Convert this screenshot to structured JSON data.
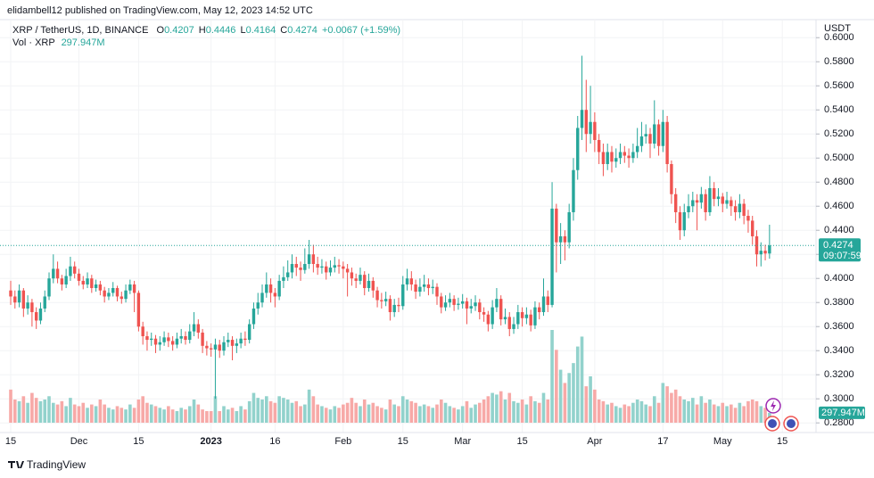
{
  "header": {
    "publisher": "elidambell12 published on TradingView.com, May 12, 2023 14:52 UTC"
  },
  "footer": {
    "brand": "TradingView"
  },
  "chart_data": {
    "type": "candlestick",
    "symbol": "XRP / TetherUS, 1D, BINANCE",
    "ohlc_legend_labels": [
      "O",
      "H",
      "L",
      "C"
    ],
    "change_label": "+0.0067 (+1.59%)",
    "volume_title": "Vol · XRP",
    "volume_label": "297.947M",
    "countdown": "09:07:59",
    "currency": "USDT",
    "up_color": "#26a69a",
    "down_color": "#ef5350",
    "up_volume_color": "#92d2cc",
    "down_volume_color": "#f7a9a7",
    "grid": true,
    "ylim": [
      0.272,
      0.615
    ],
    "yticks": [
      {
        "value": 0.28,
        "label": "0.2800"
      },
      {
        "value": 0.3,
        "label": "0.3000"
      },
      {
        "value": 0.32,
        "label": "0.3200"
      },
      {
        "value": 0.34,
        "label": "0.3400"
      },
      {
        "value": 0.36,
        "label": "0.3600"
      },
      {
        "value": 0.38,
        "label": "0.3800"
      },
      {
        "value": 0.4,
        "label": "0.4000"
      },
      {
        "value": 0.42,
        "label": "0.4200"
      },
      {
        "value": 0.44,
        "label": "0.4400"
      },
      {
        "value": 0.46,
        "label": "0.4600"
      },
      {
        "value": 0.48,
        "label": "0.4800"
      },
      {
        "value": 0.5,
        "label": "0.5000"
      },
      {
        "value": 0.52,
        "label": "0.5200"
      },
      {
        "value": 0.54,
        "label": "0.5400"
      },
      {
        "value": 0.56,
        "label": "0.5600"
      },
      {
        "value": 0.58,
        "label": "0.5800"
      },
      {
        "value": 0.6,
        "label": "0.6000"
      }
    ],
    "categories": [
      "15",
      null,
      null,
      null,
      null,
      null,
      null,
      null,
      null,
      null,
      null,
      null,
      null,
      null,
      null,
      null,
      "Dec",
      null,
      null,
      null,
      null,
      null,
      null,
      null,
      null,
      null,
      null,
      null,
      null,
      null,
      "15",
      null,
      null,
      null,
      null,
      null,
      null,
      null,
      null,
      null,
      null,
      null,
      null,
      null,
      null,
      null,
      null,
      "2023",
      null,
      null,
      null,
      null,
      null,
      null,
      null,
      null,
      null,
      null,
      null,
      null,
      null,
      null,
      "16",
      null,
      null,
      null,
      null,
      null,
      null,
      null,
      null,
      null,
      null,
      null,
      null,
      null,
      null,
      null,
      "Feb",
      null,
      null,
      null,
      null,
      null,
      null,
      null,
      null,
      null,
      null,
      null,
      null,
      null,
      "15",
      null,
      null,
      null,
      null,
      null,
      null,
      null,
      null,
      null,
      null,
      null,
      null,
      null,
      "Mar",
      null,
      null,
      null,
      null,
      null,
      null,
      null,
      null,
      null,
      null,
      null,
      null,
      null,
      "15",
      null,
      null,
      null,
      null,
      null,
      null,
      null,
      null,
      null,
      null,
      null,
      null,
      null,
      null,
      null,
      null,
      "Apr",
      null,
      null,
      null,
      null,
      null,
      null,
      null,
      null,
      null,
      null,
      null,
      null,
      null,
      null,
      null,
      "17",
      null,
      null,
      null,
      null,
      null,
      null,
      null,
      null,
      null,
      null,
      null,
      null,
      null,
      "May",
      null,
      null,
      null,
      null,
      null,
      null,
      null,
      null,
      null,
      null,
      null,
      null,
      null,
      "15"
    ],
    "ohlc": [
      [
        0.39,
        0.398,
        0.378,
        0.385
      ],
      [
        0.385,
        0.39,
        0.375,
        0.38
      ],
      [
        0.38,
        0.395,
        0.376,
        0.39
      ],
      [
        0.39,
        0.392,
        0.368,
        0.375
      ],
      [
        0.375,
        0.386,
        0.37,
        0.38
      ],
      [
        0.38,
        0.383,
        0.36,
        0.372
      ],
      [
        0.372,
        0.376,
        0.358,
        0.365
      ],
      [
        0.365,
        0.38,
        0.362,
        0.375
      ],
      [
        0.375,
        0.39,
        0.372,
        0.385
      ],
      [
        0.385,
        0.405,
        0.382,
        0.4
      ],
      [
        0.4,
        0.42,
        0.396,
        0.408
      ],
      [
        0.408,
        0.414,
        0.396,
        0.4
      ],
      [
        0.4,
        0.403,
        0.39,
        0.395
      ],
      [
        0.395,
        0.408,
        0.392,
        0.402
      ],
      [
        0.402,
        0.418,
        0.398,
        0.41
      ],
      [
        0.41,
        0.414,
        0.4,
        0.404
      ],
      [
        0.404,
        0.408,
        0.394,
        0.398
      ],
      [
        0.398,
        0.402,
        0.391,
        0.395
      ],
      [
        0.395,
        0.405,
        0.392,
        0.4
      ],
      [
        0.4,
        0.403,
        0.388,
        0.392
      ],
      [
        0.392,
        0.399,
        0.389,
        0.395
      ],
      [
        0.395,
        0.398,
        0.386,
        0.39
      ],
      [
        0.39,
        0.393,
        0.38,
        0.385
      ],
      [
        0.385,
        0.392,
        0.382,
        0.388
      ],
      [
        0.388,
        0.397,
        0.385,
        0.392
      ],
      [
        0.392,
        0.394,
        0.381,
        0.385
      ],
      [
        0.385,
        0.389,
        0.379,
        0.383
      ],
      [
        0.383,
        0.395,
        0.38,
        0.39
      ],
      [
        0.39,
        0.399,
        0.387,
        0.395
      ],
      [
        0.395,
        0.398,
        0.372,
        0.388
      ],
      [
        0.388,
        0.39,
        0.356,
        0.36
      ],
      [
        0.36,
        0.364,
        0.345,
        0.352
      ],
      [
        0.352,
        0.356,
        0.34,
        0.349
      ],
      [
        0.349,
        0.355,
        0.344,
        0.35
      ],
      [
        0.35,
        0.353,
        0.338,
        0.345
      ],
      [
        0.345,
        0.352,
        0.34,
        0.347
      ],
      [
        0.347,
        0.356,
        0.344,
        0.351
      ],
      [
        0.351,
        0.355,
        0.343,
        0.348
      ],
      [
        0.348,
        0.352,
        0.34,
        0.345
      ],
      [
        0.345,
        0.355,
        0.342,
        0.35
      ],
      [
        0.35,
        0.358,
        0.346,
        0.352
      ],
      [
        0.352,
        0.356,
        0.345,
        0.349
      ],
      [
        0.349,
        0.362,
        0.346,
        0.356
      ],
      [
        0.356,
        0.372,
        0.352,
        0.362
      ],
      [
        0.362,
        0.366,
        0.35,
        0.355
      ],
      [
        0.355,
        0.358,
        0.338,
        0.344
      ],
      [
        0.344,
        0.348,
        0.336,
        0.342
      ],
      [
        0.342,
        0.346,
        0.335,
        0.341
      ],
      [
        0.341,
        0.35,
        0.3,
        0.345
      ],
      [
        0.345,
        0.349,
        0.334,
        0.34
      ],
      [
        0.34,
        0.352,
        0.336,
        0.347
      ],
      [
        0.347,
        0.355,
        0.343,
        0.349
      ],
      [
        0.349,
        0.352,
        0.332,
        0.344
      ],
      [
        0.344,
        0.35,
        0.338,
        0.346
      ],
      [
        0.346,
        0.355,
        0.342,
        0.35
      ],
      [
        0.35,
        0.356,
        0.344,
        0.349
      ],
      [
        0.349,
        0.366,
        0.346,
        0.362
      ],
      [
        0.362,
        0.38,
        0.358,
        0.375
      ],
      [
        0.375,
        0.388,
        0.37,
        0.38
      ],
      [
        0.38,
        0.395,
        0.376,
        0.388
      ],
      [
        0.388,
        0.405,
        0.384,
        0.395
      ],
      [
        0.395,
        0.4,
        0.38,
        0.388
      ],
      [
        0.388,
        0.392,
        0.376,
        0.385
      ],
      [
        0.385,
        0.403,
        0.382,
        0.398
      ],
      [
        0.398,
        0.41,
        0.392,
        0.401
      ],
      [
        0.401,
        0.415,
        0.398,
        0.405
      ],
      [
        0.405,
        0.42,
        0.4,
        0.412
      ],
      [
        0.412,
        0.418,
        0.402,
        0.409
      ],
      [
        0.409,
        0.414,
        0.398,
        0.407
      ],
      [
        0.407,
        0.425,
        0.404,
        0.412
      ],
      [
        0.412,
        0.432,
        0.408,
        0.42
      ],
      [
        0.42,
        0.428,
        0.405,
        0.412
      ],
      [
        0.412,
        0.418,
        0.403,
        0.409
      ],
      [
        0.409,
        0.416,
        0.404,
        0.41
      ],
      [
        0.41,
        0.414,
        0.399,
        0.405
      ],
      [
        0.405,
        0.415,
        0.402,
        0.409
      ],
      [
        0.409,
        0.418,
        0.405,
        0.411
      ],
      [
        0.411,
        0.416,
        0.404,
        0.41
      ],
      [
        0.41,
        0.414,
        0.4,
        0.408
      ],
      [
        0.408,
        0.412,
        0.385,
        0.405
      ],
      [
        0.405,
        0.409,
        0.394,
        0.4
      ],
      [
        0.4,
        0.404,
        0.392,
        0.398
      ],
      [
        0.398,
        0.409,
        0.395,
        0.403
      ],
      [
        0.403,
        0.406,
        0.386,
        0.392
      ],
      [
        0.392,
        0.404,
        0.389,
        0.398
      ],
      [
        0.398,
        0.401,
        0.384,
        0.39
      ],
      [
        0.39,
        0.393,
        0.376,
        0.382
      ],
      [
        0.382,
        0.388,
        0.375,
        0.381
      ],
      [
        0.381,
        0.389,
        0.377,
        0.383
      ],
      [
        0.383,
        0.386,
        0.365,
        0.372
      ],
      [
        0.372,
        0.383,
        0.368,
        0.378
      ],
      [
        0.378,
        0.384,
        0.372,
        0.377
      ],
      [
        0.377,
        0.402,
        0.374,
        0.395
      ],
      [
        0.395,
        0.408,
        0.39,
        0.4
      ],
      [
        0.4,
        0.406,
        0.39,
        0.395
      ],
      [
        0.395,
        0.399,
        0.383,
        0.389
      ],
      [
        0.389,
        0.4,
        0.385,
        0.393
      ],
      [
        0.393,
        0.403,
        0.389,
        0.395
      ],
      [
        0.395,
        0.4,
        0.386,
        0.392
      ],
      [
        0.392,
        0.399,
        0.387,
        0.393
      ],
      [
        0.393,
        0.396,
        0.378,
        0.385
      ],
      [
        0.385,
        0.388,
        0.371,
        0.376
      ],
      [
        0.376,
        0.386,
        0.373,
        0.38
      ],
      [
        0.38,
        0.388,
        0.376,
        0.383
      ],
      [
        0.383,
        0.386,
        0.373,
        0.378
      ],
      [
        0.378,
        0.384,
        0.374,
        0.379
      ],
      [
        0.379,
        0.387,
        0.375,
        0.381
      ],
      [
        0.381,
        0.384,
        0.362,
        0.375
      ],
      [
        0.375,
        0.383,
        0.371,
        0.377
      ],
      [
        0.377,
        0.386,
        0.373,
        0.38
      ],
      [
        0.38,
        0.383,
        0.366,
        0.372
      ],
      [
        0.372,
        0.376,
        0.364,
        0.37
      ],
      [
        0.37,
        0.373,
        0.356,
        0.362
      ],
      [
        0.362,
        0.382,
        0.358,
        0.376
      ],
      [
        0.376,
        0.392,
        0.372,
        0.383
      ],
      [
        0.383,
        0.386,
        0.361,
        0.366
      ],
      [
        0.366,
        0.375,
        0.362,
        0.368
      ],
      [
        0.368,
        0.372,
        0.352,
        0.358
      ],
      [
        0.358,
        0.368,
        0.354,
        0.362
      ],
      [
        0.362,
        0.378,
        0.358,
        0.372
      ],
      [
        0.372,
        0.376,
        0.36,
        0.367
      ],
      [
        0.367,
        0.376,
        0.362,
        0.37
      ],
      [
        0.37,
        0.374,
        0.356,
        0.361
      ],
      [
        0.361,
        0.381,
        0.358,
        0.376
      ],
      [
        0.376,
        0.38,
        0.366,
        0.372
      ],
      [
        0.372,
        0.4,
        0.369,
        0.385
      ],
      [
        0.385,
        0.39,
        0.372,
        0.378
      ],
      [
        0.378,
        0.48,
        0.376,
        0.458
      ],
      [
        0.458,
        0.462,
        0.405,
        0.43
      ],
      [
        0.43,
        0.446,
        0.412,
        0.435
      ],
      [
        0.435,
        0.44,
        0.415,
        0.43
      ],
      [
        0.43,
        0.462,
        0.425,
        0.455
      ],
      [
        0.455,
        0.5,
        0.448,
        0.49
      ],
      [
        0.49,
        0.535,
        0.482,
        0.525
      ],
      [
        0.525,
        0.585,
        0.515,
        0.54
      ],
      [
        0.54,
        0.565,
        0.505,
        0.52
      ],
      [
        0.52,
        0.56,
        0.512,
        0.53
      ],
      [
        0.53,
        0.538,
        0.505,
        0.515
      ],
      [
        0.515,
        0.52,
        0.495,
        0.505
      ],
      [
        0.505,
        0.512,
        0.485,
        0.495
      ],
      [
        0.495,
        0.512,
        0.49,
        0.505
      ],
      [
        0.505,
        0.51,
        0.488,
        0.497
      ],
      [
        0.497,
        0.508,
        0.492,
        0.5
      ],
      [
        0.5,
        0.512,
        0.495,
        0.505
      ],
      [
        0.505,
        0.51,
        0.496,
        0.502
      ],
      [
        0.502,
        0.508,
        0.492,
        0.5
      ],
      [
        0.5,
        0.512,
        0.496,
        0.505
      ],
      [
        0.505,
        0.525,
        0.5,
        0.51
      ],
      [
        0.51,
        0.53,
        0.505,
        0.518
      ],
      [
        0.518,
        0.528,
        0.512,
        0.52
      ],
      [
        0.52,
        0.525,
        0.5,
        0.512
      ],
      [
        0.512,
        0.548,
        0.508,
        0.528
      ],
      [
        0.528,
        0.532,
        0.502,
        0.51
      ],
      [
        0.51,
        0.54,
        0.505,
        0.53
      ],
      [
        0.53,
        0.535,
        0.488,
        0.495
      ],
      [
        0.495,
        0.498,
        0.462,
        0.47
      ],
      [
        0.47,
        0.475,
        0.446,
        0.455
      ],
      [
        0.455,
        0.46,
        0.432,
        0.44
      ],
      [
        0.44,
        0.462,
        0.435,
        0.455
      ],
      [
        0.455,
        0.47,
        0.45,
        0.46
      ],
      [
        0.46,
        0.472,
        0.455,
        0.465
      ],
      [
        0.465,
        0.47,
        0.44,
        0.463
      ],
      [
        0.463,
        0.476,
        0.458,
        0.47
      ],
      [
        0.47,
        0.474,
        0.448,
        0.455
      ],
      [
        0.455,
        0.485,
        0.452,
        0.475
      ],
      [
        0.475,
        0.48,
        0.46,
        0.466
      ],
      [
        0.466,
        0.475,
        0.46,
        0.468
      ],
      [
        0.468,
        0.471,
        0.455,
        0.462
      ],
      [
        0.462,
        0.472,
        0.458,
        0.465
      ],
      [
        0.465,
        0.468,
        0.452,
        0.46
      ],
      [
        0.46,
        0.465,
        0.448,
        0.455
      ],
      [
        0.455,
        0.47,
        0.45,
        0.462
      ],
      [
        0.462,
        0.466,
        0.445,
        0.452
      ],
      [
        0.452,
        0.457,
        0.438,
        0.448
      ],
      [
        0.448,
        0.452,
        0.428,
        0.435
      ],
      [
        0.435,
        0.44,
        0.41,
        0.42
      ],
      [
        0.42,
        0.43,
        0.41,
        0.423
      ],
      [
        0.423,
        0.428,
        0.415,
        0.4207
      ],
      [
        0.4207,
        0.4446,
        0.4164,
        0.4274
      ],
      null,
      null,
      null
    ],
    "volume": [
      1000,
      700,
      650,
      800,
      600,
      900,
      750,
      650,
      700,
      800,
      600,
      550,
      650,
      500,
      750,
      550,
      500,
      600,
      450,
      550,
      500,
      700,
      550,
      450,
      400,
      500,
      450,
      400,
      550,
      450,
      700,
      800,
      600,
      550,
      500,
      450,
      400,
      500,
      400,
      350,
      450,
      400,
      500,
      700,
      550,
      400,
      350,
      350,
      800,
      350,
      500,
      400,
      450,
      350,
      500,
      400,
      650,
      900,
      750,
      700,
      800,
      650,
      600,
      800,
      750,
      700,
      600,
      650,
      500,
      550,
      1000,
      800,
      550,
      500,
      450,
      400,
      500,
      450,
      550,
      600,
      750,
      600,
      500,
      700,
      550,
      600,
      500,
      450,
      400,
      700,
      550,
      500,
      800,
      700,
      650,
      600,
      500,
      550,
      500,
      450,
      550,
      700,
      600,
      500,
      450,
      400,
      500,
      650,
      450,
      550,
      600,
      700,
      800,
      900,
      850,
      950,
      700,
      900,
      650,
      600,
      700,
      550,
      800,
      650,
      600,
      900,
      700,
      2800,
      2200,
      1600,
      1200,
      1500,
      1800,
      2300,
      2600,
      1100,
      1400,
      1000,
      700,
      650,
      550,
      600,
      500,
      450,
      550,
      500,
      600,
      700,
      650,
      550,
      500,
      800,
      600,
      1200,
      1100,
      900,
      1000,
      800,
      700,
      650,
      750,
      550,
      800,
      600,
      700,
      550,
      500,
      600,
      500,
      550,
      450,
      600,
      500,
      650,
      700,
      650,
      500,
      450,
      297.947,
      null,
      null,
      null
    ]
  }
}
